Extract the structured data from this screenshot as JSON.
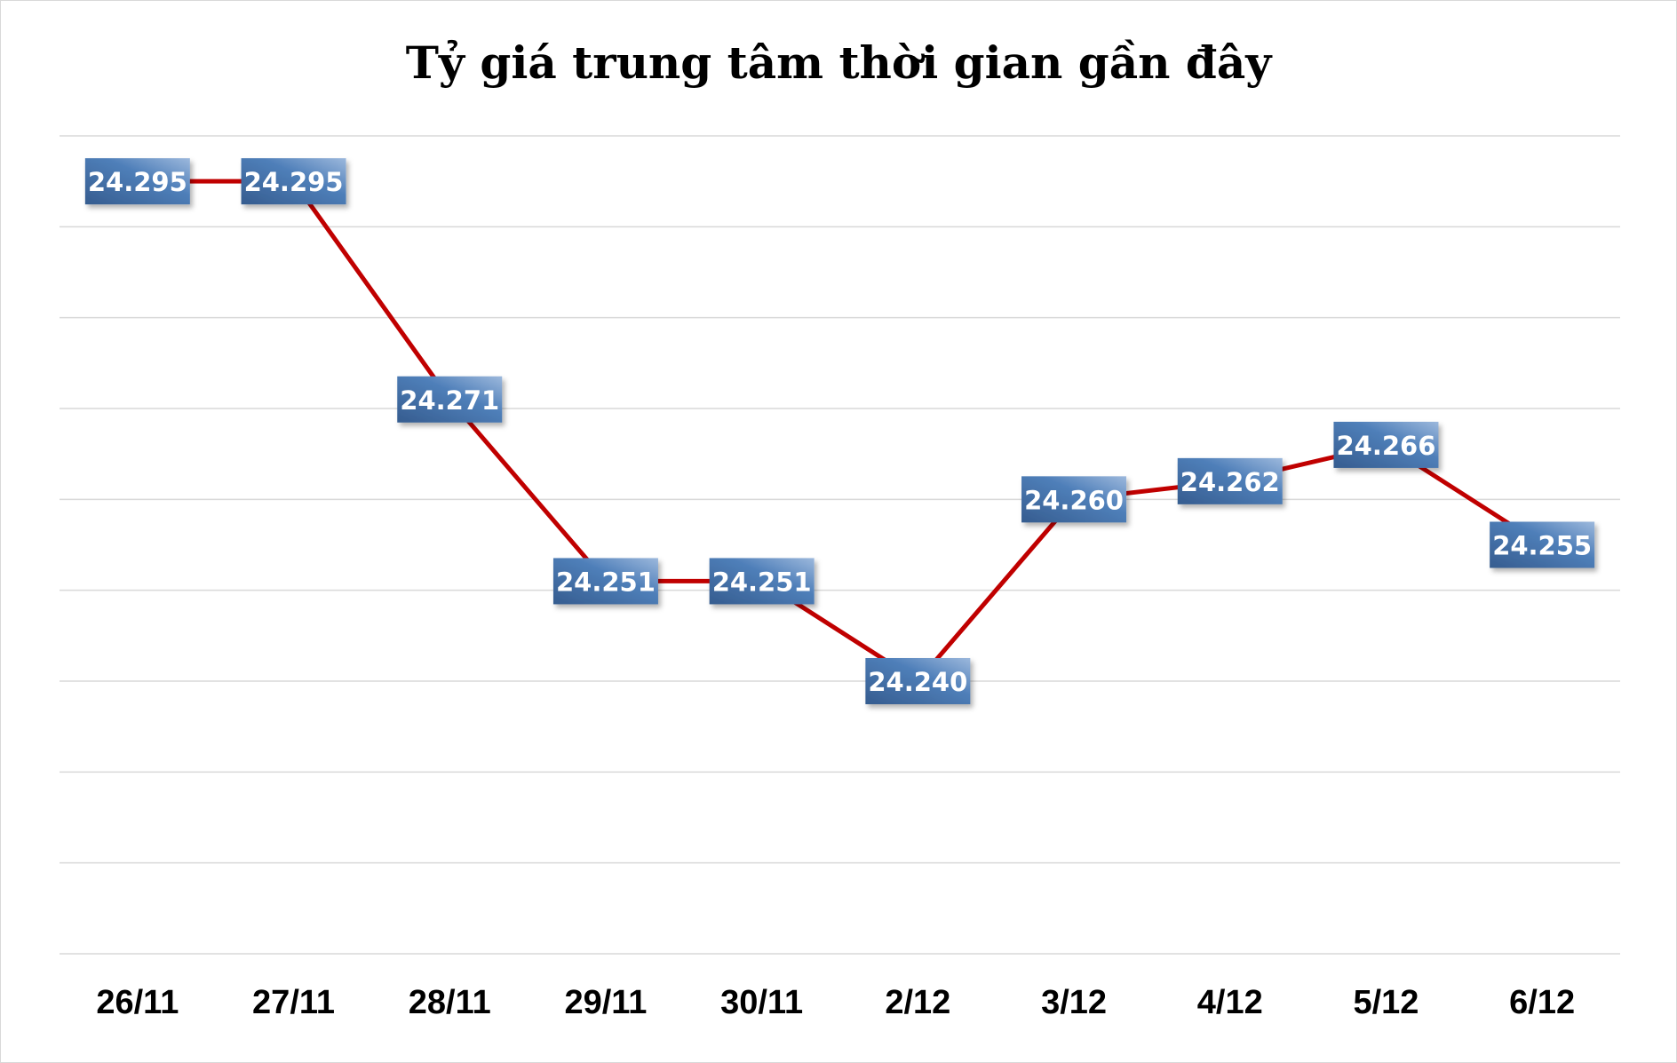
{
  "chart_data": {
    "type": "line",
    "title": "Tỷ giá trung tâm thời gian gần đây",
    "categories": [
      "26/11",
      "27/11",
      "28/11",
      "29/11",
      "30/11",
      "2/12",
      "3/12",
      "4/12",
      "5/12",
      "6/12"
    ],
    "series": [
      {
        "name": "Tỷ giá trung tâm",
        "values": [
          24.295,
          24.295,
          24.271,
          24.251,
          24.251,
          24.24,
          24.26,
          24.262,
          24.266,
          24.255
        ]
      }
    ],
    "data_labels": [
      "24.295",
      "24.295",
      "24.271",
      "24.251",
      "24.251",
      "24.240",
      "24.260",
      "24.262",
      "24.266",
      "24.255"
    ],
    "ylim": [
      24.21,
      24.3
    ],
    "ytick_step": 0.01,
    "grid": true,
    "xlabel": "",
    "ylabel": "",
    "line_color": "#C00000",
    "label_color": "#4A75AE"
  }
}
